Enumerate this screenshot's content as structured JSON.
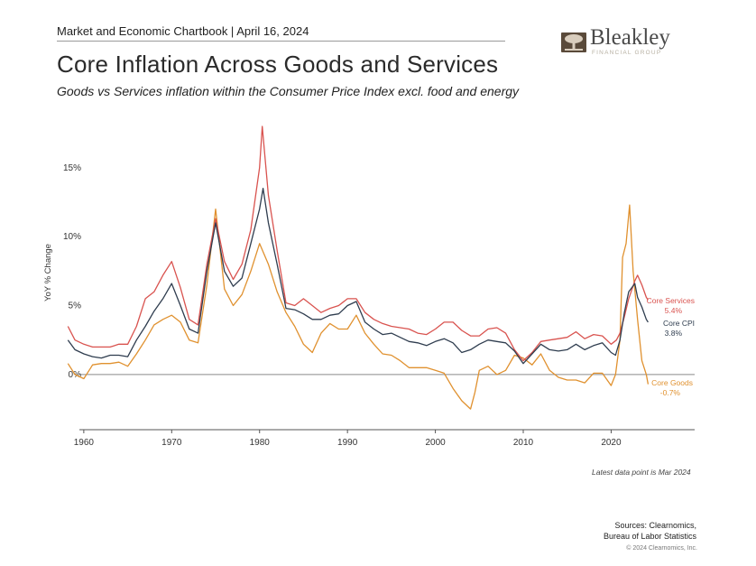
{
  "header": {
    "chartbook": "Market and Economic Chartbook | April 16, 2024",
    "title": "Core Inflation Across Goods and Services",
    "subtitle": "Goods vs Services inflation within the Consumer Price Index excl. food and energy"
  },
  "logo": {
    "name": "Bleakley",
    "tagline": "FINANCIAL GROUP"
  },
  "footer": {
    "latest_note": "Latest data point is Mar 2024",
    "sources_line1": "Sources: Clearnomics,",
    "sources_line2": "Bureau of Labor Statistics",
    "copyright": "© 2024 Clearnomics, Inc."
  },
  "colors": {
    "services": "#d9534f",
    "cpi": "#2f3d4f",
    "goods": "#e0912f",
    "axis": "#555555",
    "logo_icon": "#5a4a3a"
  },
  "chart_data": {
    "type": "line",
    "title": "Core Inflation Across Goods and Services",
    "xlabel": "",
    "ylabel": "YoY % Change",
    "xlim": [
      1959.5,
      2029.5
    ],
    "ylim": [
      -4,
      18
    ],
    "x_ticks": [
      1960,
      1970,
      1980,
      1990,
      2000,
      2010,
      2020
    ],
    "x_tick_labels": [
      "1960",
      "1970",
      "1980",
      "1990",
      "2000",
      "2010",
      "2020"
    ],
    "y_ticks": [
      0,
      5,
      10,
      15
    ],
    "y_tick_labels": [
      "0%",
      "5%",
      "10%",
      "15%"
    ],
    "grid": false,
    "series": [
      {
        "name": "Core Services",
        "value_label": "5.4%",
        "points": [
          [
            1958.2,
            3.5
          ],
          [
            1959,
            2.5
          ],
          [
            1960,
            2.2
          ],
          [
            1961,
            2.0
          ],
          [
            1962,
            2.0
          ],
          [
            1963,
            2.0
          ],
          [
            1964,
            2.2
          ],
          [
            1965,
            2.2
          ],
          [
            1966,
            3.5
          ],
          [
            1967,
            5.5
          ],
          [
            1968,
            6.0
          ],
          [
            1969,
            7.2
          ],
          [
            1970,
            8.2
          ],
          [
            1971,
            6.3
          ],
          [
            1972,
            4.0
          ],
          [
            1973,
            3.6
          ],
          [
            1974,
            8.0
          ],
          [
            1975,
            11.3
          ],
          [
            1976,
            8.2
          ],
          [
            1977,
            6.9
          ],
          [
            1978,
            8.0
          ],
          [
            1979,
            10.5
          ],
          [
            1980,
            15.0
          ],
          [
            1980.3,
            18.0
          ],
          [
            1981,
            13.0
          ],
          [
            1982,
            9.0
          ],
          [
            1983,
            5.2
          ],
          [
            1984,
            5.0
          ],
          [
            1985,
            5.5
          ],
          [
            1986,
            5.0
          ],
          [
            1987,
            4.5
          ],
          [
            1988,
            4.8
          ],
          [
            1989,
            5.0
          ],
          [
            1990,
            5.5
          ],
          [
            1991,
            5.5
          ],
          [
            1992,
            4.5
          ],
          [
            1993,
            4.0
          ],
          [
            1994,
            3.7
          ],
          [
            1995,
            3.5
          ],
          [
            1996,
            3.4
          ],
          [
            1997,
            3.3
          ],
          [
            1998,
            3.0
          ],
          [
            1999,
            2.9
          ],
          [
            2000,
            3.3
          ],
          [
            2001,
            3.8
          ],
          [
            2002,
            3.8
          ],
          [
            2003,
            3.2
          ],
          [
            2004,
            2.8
          ],
          [
            2005,
            2.8
          ],
          [
            2006,
            3.3
          ],
          [
            2007,
            3.4
          ],
          [
            2008,
            3.0
          ],
          [
            2009,
            1.8
          ],
          [
            2010,
            1.0
          ],
          [
            2011,
            1.6
          ],
          [
            2012,
            2.4
          ],
          [
            2013,
            2.5
          ],
          [
            2014,
            2.6
          ],
          [
            2015,
            2.7
          ],
          [
            2016,
            3.1
          ],
          [
            2017,
            2.6
          ],
          [
            2018,
            2.9
          ],
          [
            2019,
            2.8
          ],
          [
            2020,
            2.2
          ],
          [
            2020.6,
            2.5
          ],
          [
            2021,
            3.0
          ],
          [
            2021.5,
            4.2
          ],
          [
            2022,
            5.5
          ],
          [
            2022.7,
            6.8
          ],
          [
            2023,
            7.2
          ],
          [
            2023.5,
            6.5
          ],
          [
            2024,
            5.6
          ],
          [
            2024.2,
            5.4
          ]
        ]
      },
      {
        "name": "Core CPI",
        "value_label": "3.8%",
        "points": [
          [
            1958.2,
            2.5
          ],
          [
            1959,
            1.8
          ],
          [
            1960,
            1.5
          ],
          [
            1961,
            1.3
          ],
          [
            1962,
            1.2
          ],
          [
            1963,
            1.4
          ],
          [
            1964,
            1.4
          ],
          [
            1965,
            1.3
          ],
          [
            1966,
            2.5
          ],
          [
            1967,
            3.5
          ],
          [
            1968,
            4.6
          ],
          [
            1969,
            5.5
          ],
          [
            1970,
            6.6
          ],
          [
            1971,
            5.0
          ],
          [
            1972,
            3.3
          ],
          [
            1973,
            3.0
          ],
          [
            1974,
            7.5
          ],
          [
            1975,
            11.0
          ],
          [
            1976,
            7.5
          ],
          [
            1977,
            6.4
          ],
          [
            1978,
            7.0
          ],
          [
            1979,
            9.5
          ],
          [
            1980,
            12.0
          ],
          [
            1980.4,
            13.5
          ],
          [
            1981,
            11.0
          ],
          [
            1982,
            8.0
          ],
          [
            1983,
            4.8
          ],
          [
            1984,
            4.7
          ],
          [
            1985,
            4.4
          ],
          [
            1986,
            4.0
          ],
          [
            1987,
            4.0
          ],
          [
            1988,
            4.3
          ],
          [
            1989,
            4.4
          ],
          [
            1990,
            5.0
          ],
          [
            1991,
            5.3
          ],
          [
            1992,
            3.8
          ],
          [
            1993,
            3.3
          ],
          [
            1994,
            2.9
          ],
          [
            1995,
            3.0
          ],
          [
            1996,
            2.7
          ],
          [
            1997,
            2.4
          ],
          [
            1998,
            2.3
          ],
          [
            1999,
            2.1
          ],
          [
            2000,
            2.4
          ],
          [
            2001,
            2.6
          ],
          [
            2002,
            2.3
          ],
          [
            2003,
            1.6
          ],
          [
            2004,
            1.8
          ],
          [
            2005,
            2.2
          ],
          [
            2006,
            2.5
          ],
          [
            2007,
            2.4
          ],
          [
            2008,
            2.3
          ],
          [
            2009,
            1.7
          ],
          [
            2010,
            0.8
          ],
          [
            2011,
            1.5
          ],
          [
            2012,
            2.2
          ],
          [
            2013,
            1.8
          ],
          [
            2014,
            1.7
          ],
          [
            2015,
            1.8
          ],
          [
            2016,
            2.2
          ],
          [
            2017,
            1.8
          ],
          [
            2018,
            2.1
          ],
          [
            2019,
            2.3
          ],
          [
            2020,
            1.6
          ],
          [
            2020.5,
            1.4
          ],
          [
            2021,
            2.5
          ],
          [
            2021.5,
            4.5
          ],
          [
            2022,
            6.0
          ],
          [
            2022.7,
            6.6
          ],
          [
            2023,
            5.6
          ],
          [
            2023.5,
            4.9
          ],
          [
            2024,
            4.0
          ],
          [
            2024.2,
            3.8
          ]
        ]
      },
      {
        "name": "Core Goods",
        "value_label": "-0.7%",
        "points": [
          [
            1958.2,
            0.8
          ],
          [
            1959,
            0.0
          ],
          [
            1960,
            -0.3
          ],
          [
            1960.8,
            0.5
          ],
          [
            1961,
            0.7
          ],
          [
            1962,
            0.8
          ],
          [
            1963,
            0.8
          ],
          [
            1964,
            0.9
          ],
          [
            1965,
            0.6
          ],
          [
            1966,
            1.5
          ],
          [
            1967,
            2.5
          ],
          [
            1968,
            3.6
          ],
          [
            1969,
            4.0
          ],
          [
            1970,
            4.3
          ],
          [
            1971,
            3.8
          ],
          [
            1972,
            2.5
          ],
          [
            1973,
            2.3
          ],
          [
            1974,
            6.5
          ],
          [
            1975,
            12.0
          ],
          [
            1976,
            6.2
          ],
          [
            1977,
            5.0
          ],
          [
            1978,
            5.8
          ],
          [
            1979,
            7.5
          ],
          [
            1980,
            9.5
          ],
          [
            1981,
            8.0
          ],
          [
            1982,
            6.0
          ],
          [
            1983,
            4.5
          ],
          [
            1984,
            3.5
          ],
          [
            1985,
            2.2
          ],
          [
            1986,
            1.6
          ],
          [
            1987,
            3.0
          ],
          [
            1988,
            3.7
          ],
          [
            1989,
            3.3
          ],
          [
            1990,
            3.3
          ],
          [
            1991,
            4.3
          ],
          [
            1992,
            3.0
          ],
          [
            1993,
            2.2
          ],
          [
            1994,
            1.5
          ],
          [
            1995,
            1.4
          ],
          [
            1996,
            1.0
          ],
          [
            1997,
            0.5
          ],
          [
            1998,
            0.5
          ],
          [
            1999,
            0.5
          ],
          [
            2000,
            0.3
          ],
          [
            2001,
            0.1
          ],
          [
            2002,
            -1.0
          ],
          [
            2003,
            -1.9
          ],
          [
            2004,
            -2.5
          ],
          [
            2004.5,
            -1.3
          ],
          [
            2005,
            0.3
          ],
          [
            2006,
            0.6
          ],
          [
            2007,
            0.0
          ],
          [
            2008,
            0.3
          ],
          [
            2009,
            1.4
          ],
          [
            2010,
            1.2
          ],
          [
            2011,
            0.7
          ],
          [
            2012,
            1.5
          ],
          [
            2013,
            0.3
          ],
          [
            2014,
            -0.2
          ],
          [
            2015,
            -0.4
          ],
          [
            2016,
            -0.4
          ],
          [
            2017,
            -0.6
          ],
          [
            2018,
            0.1
          ],
          [
            2019,
            0.1
          ],
          [
            2020,
            -0.8
          ],
          [
            2020.5,
            0.0
          ],
          [
            2021,
            2.5
          ],
          [
            2021.3,
            8.5
          ],
          [
            2021.7,
            9.5
          ],
          [
            2022.1,
            12.3
          ],
          [
            2022.5,
            7.5
          ],
          [
            2023,
            4.0
          ],
          [
            2023.5,
            1.0
          ],
          [
            2024,
            0.0
          ],
          [
            2024.2,
            -0.7
          ]
        ]
      }
    ]
  }
}
